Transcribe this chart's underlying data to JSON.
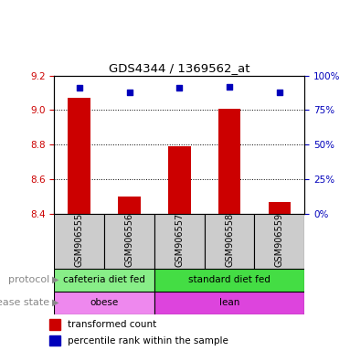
{
  "title": "GDS4344 / 1369562_at",
  "samples": [
    "GSM906555",
    "GSM906556",
    "GSM906557",
    "GSM906558",
    "GSM906559"
  ],
  "bar_values": [
    9.07,
    8.5,
    8.79,
    9.01,
    8.47
  ],
  "bar_bottom": 8.4,
  "blue_pct": [
    91,
    88,
    91,
    92,
    88
  ],
  "ylim": [
    8.4,
    9.2
  ],
  "y_ticks": [
    8.4,
    8.6,
    8.8,
    9.0,
    9.2
  ],
  "right_ticks": [
    0,
    25,
    50,
    75,
    100
  ],
  "right_ylim": [
    0,
    100
  ],
  "bar_color": "#cc0000",
  "blue_color": "#0000bb",
  "prot_groups": [
    {
      "label": "cafeteria diet fed",
      "start": 0,
      "end": 2,
      "color": "#88ee88"
    },
    {
      "label": "standard diet fed",
      "start": 2,
      "end": 5,
      "color": "#44dd44"
    }
  ],
  "dis_groups": [
    {
      "label": "obese",
      "start": 0,
      "end": 2,
      "color": "#ee88ee"
    },
    {
      "label": "lean",
      "start": 2,
      "end": 5,
      "color": "#dd44dd"
    }
  ],
  "protocol_label": "protocol",
  "disease_label": "disease state",
  "legend_bar_label": "transformed count",
  "legend_blue_label": "percentile rank within the sample",
  "tick_color_left": "#cc0000",
  "tick_color_right": "#0000bb",
  "sample_box_color": "#cccccc",
  "left_label_color": "#888888",
  "arrow_color": "#888888"
}
